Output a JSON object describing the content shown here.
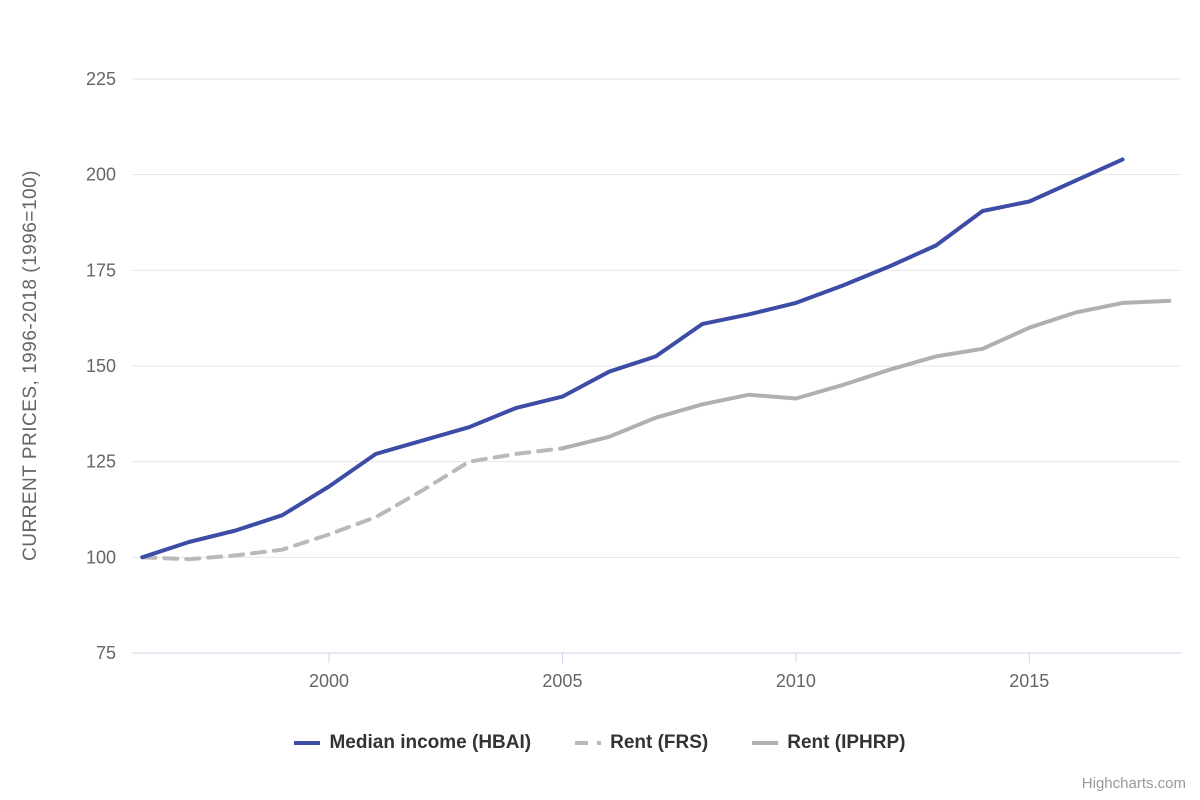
{
  "chart_data": {
    "type": "line",
    "title": "",
    "xlabel": "",
    "ylabel": "CURRENT PRICES, 1996-2018 (1996=100)",
    "ylim": [
      75,
      225
    ],
    "xlim": [
      1995.78,
      2018.25
    ],
    "yticks": [
      75,
      100,
      125,
      150,
      175,
      200,
      225
    ],
    "xticks": [
      2000,
      2005,
      2010,
      2015
    ],
    "grid": "horizontal",
    "legend_position": "bottom-center",
    "series": [
      {
        "name": "Median income (HBAI)",
        "color": "#3d4da6",
        "style": "solid",
        "dash": "",
        "line_width": 4,
        "x": [
          1996,
          1997,
          1998,
          1999,
          2000,
          2001,
          2002,
          2003,
          2004,
          2005,
          2006,
          2007,
          2008,
          2009,
          2010,
          2011,
          2012,
          2013,
          2014,
          2015,
          2016,
          2017
        ],
        "values": [
          100,
          104,
          107,
          111,
          118.5,
          127,
          130.5,
          134,
          139,
          142,
          148.5,
          152.5,
          161,
          163.5,
          166.5,
          171,
          176,
          181.5,
          190.5,
          193,
          198.5,
          204
        ]
      },
      {
        "name": "Rent (FRS)",
        "color": "#b9b9b9",
        "style": "dashed",
        "dash": "13 9",
        "line_width": 4,
        "x": [
          1996,
          1997,
          1998,
          1999,
          2000,
          2001,
          2002,
          2003,
          2004,
          2005
        ],
        "values": [
          100,
          99.5,
          100.5,
          102,
          106,
          110.5,
          117.5,
          125,
          127,
          128.5
        ]
      },
      {
        "name": "Rent (IPHRP)",
        "color": "#b0b0b0",
        "style": "solid",
        "dash": "",
        "line_width": 4,
        "x": [
          2005,
          2006,
          2007,
          2008,
          2009,
          2010,
          2011,
          2012,
          2013,
          2014,
          2015,
          2016,
          2017,
          2018
        ],
        "values": [
          128.5,
          131.5,
          136.5,
          140,
          142.5,
          141.5,
          145,
          149,
          152.5,
          154.5,
          160,
          164,
          166.5,
          167
        ]
      }
    ]
  },
  "credits": {
    "label": "Highcharts.com"
  },
  "colors": {
    "background": "#ffffff",
    "gridline": "#e6e6e6",
    "axis_line": "#ccd6eb",
    "tick_mark": "#ccd6eb",
    "axis_text": "#666666",
    "legend_text": "#333333",
    "credits_text": "#999999"
  }
}
